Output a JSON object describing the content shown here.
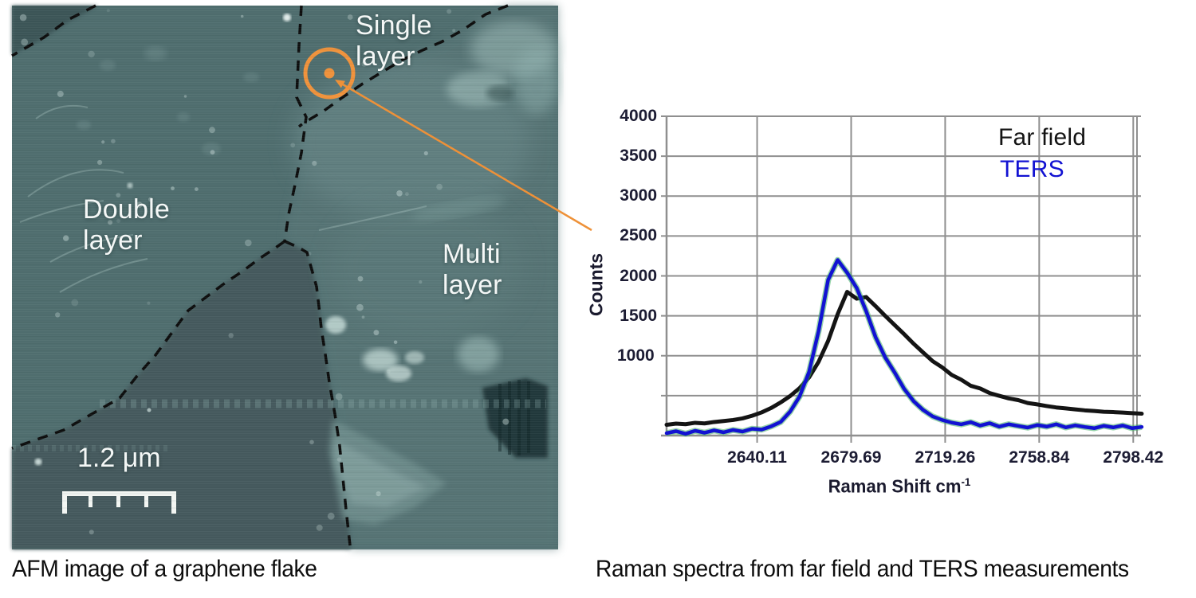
{
  "page": {
    "background": "#ffffff"
  },
  "afm": {
    "caption": "AFM image of a graphene flake",
    "region_labels": {
      "single": "Single layer",
      "double": "Double layer",
      "multi": "Multi layer"
    },
    "scale_bar_label": "1.2 μm",
    "marker_color": "#f0923b",
    "boundary_color": "#0d0d0d",
    "label_color": "#f4f7f6"
  },
  "chart": {
    "caption": "Raman spectra from far field and TERS measurements",
    "legend": [
      {
        "label": "Far field",
        "color": "#141414"
      },
      {
        "label": "TERS",
        "color": "#1212d2"
      }
    ],
    "grid_color": "#8f8f8f"
  },
  "connector": {
    "color": "#ee9138"
  },
  "chart_data": {
    "type": "line",
    "title": "",
    "xlabel": "Raman Shift cm",
    "xlabel_sup": "-1",
    "ylabel": "Counts",
    "x_tick_labels": [
      "2640.11",
      "2679.69",
      "2719.26",
      "2758.84",
      "2798.42"
    ],
    "x_tick_values": [
      2640.11,
      2679.69,
      2719.26,
      2758.84,
      2798.42
    ],
    "y_tick_labels": [
      "4000",
      "3500",
      "3000",
      "2500",
      "2000",
      "1500",
      "1000"
    ],
    "y_tick_step": 500,
    "y_tick_1000_clipped": true,
    "xlim": [
      2602,
      2800
    ],
    "ylim": [
      0,
      4000
    ],
    "grid": true,
    "legend_position": "upper right",
    "x": [
      2602,
      2606,
      2610,
      2614,
      2618,
      2622,
      2626,
      2630,
      2634,
      2638,
      2642,
      2646,
      2650,
      2654,
      2658,
      2662,
      2666,
      2670,
      2674,
      2678,
      2682,
      2686,
      2690,
      2694,
      2698,
      2702,
      2706,
      2710,
      2714,
      2718,
      2722,
      2726,
      2730,
      2734,
      2738,
      2742,
      2746,
      2750,
      2754,
      2758,
      2762,
      2766,
      2770,
      2774,
      2778,
      2782,
      2786,
      2790,
      2794,
      2798,
      2802
    ],
    "series": [
      {
        "name": "Far field",
        "color": "#141414",
        "y": [
          135,
          150,
          142,
          160,
          152,
          170,
          182,
          195,
          215,
          248,
          290,
          345,
          415,
          495,
          595,
          730,
          925,
          1185,
          1520,
          1800,
          1715,
          1735,
          1620,
          1500,
          1385,
          1270,
          1150,
          1040,
          932,
          855,
          760,
          700,
          624,
          590,
          532,
          498,
          466,
          444,
          408,
          390,
          370,
          352,
          340,
          328,
          316,
          308,
          298,
          294,
          288,
          280,
          274
        ]
      },
      {
        "name": "TERS",
        "color": "#1212d2",
        "edge_color": "#3fae62",
        "y": [
          30,
          55,
          22,
          60,
          35,
          65,
          40,
          70,
          50,
          85,
          75,
          115,
          170,
          300,
          490,
          800,
          1310,
          1950,
          2200,
          2040,
          1850,
          1560,
          1230,
          980,
          790,
          585,
          430,
          320,
          240,
          195,
          162,
          140,
          168,
          125,
          155,
          112,
          142,
          120,
          100,
          132,
          112,
          142,
          102,
          128,
          108,
          92,
          122,
          102,
          126,
          92,
          108
        ]
      }
    ]
  }
}
